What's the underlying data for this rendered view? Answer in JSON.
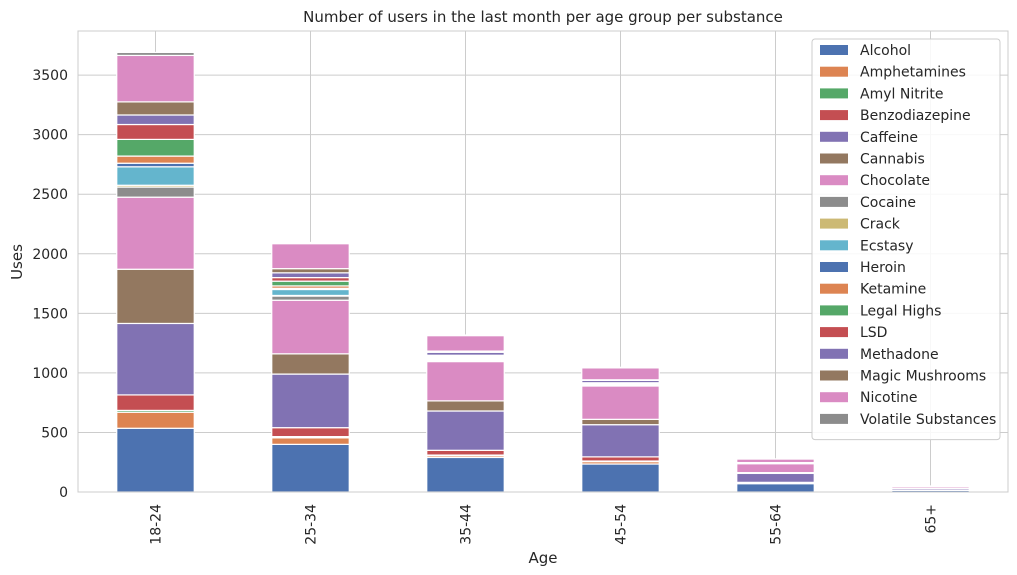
{
  "chart_data": {
    "type": "bar",
    "stacked": true,
    "title": "Number of users in the last month per age group per substance",
    "xlabel": "Age",
    "ylabel": "Uses",
    "ylim": [
      0,
      3870
    ],
    "yticks": [
      0,
      500,
      1000,
      1500,
      2000,
      2500,
      3000,
      3500
    ],
    "grid": true,
    "legend_position": "top-right",
    "categories": [
      "18-24",
      "25-34",
      "35-44",
      "45-54",
      "55-64",
      "65+"
    ],
    "series": [
      {
        "name": "Alcohol",
        "color": "#4c72b0",
        "values": [
          535,
          400,
          290,
          235,
          70,
          14
        ]
      },
      {
        "name": "Amphetamines",
        "color": "#dd8452",
        "values": [
          135,
          55,
          15,
          20,
          3,
          1
        ]
      },
      {
        "name": "Amyl Nitrite",
        "color": "#55a868",
        "values": [
          15,
          10,
          5,
          5,
          1,
          0
        ]
      },
      {
        "name": "Benzodiazepine",
        "color": "#c44e52",
        "values": [
          130,
          75,
          40,
          35,
          7,
          2
        ]
      },
      {
        "name": "Caffeine",
        "color": "#8172b3",
        "values": [
          600,
          450,
          330,
          270,
          75,
          14
        ]
      },
      {
        "name": "Cannabis",
        "color": "#937860",
        "values": [
          455,
          170,
          85,
          45,
          7,
          1
        ]
      },
      {
        "name": "Chocolate",
        "color": "#da8bc3",
        "values": [
          605,
          450,
          330,
          280,
          75,
          14
        ]
      },
      {
        "name": "Cocaine",
        "color": "#8c8c8c",
        "values": [
          85,
          35,
          10,
          5,
          1,
          0
        ]
      },
      {
        "name": "Crack",
        "color": "#ccb974",
        "values": [
          15,
          5,
          3,
          2,
          0,
          0
        ]
      },
      {
        "name": "Ecstasy",
        "color": "#64b5cd",
        "values": [
          155,
          50,
          10,
          5,
          1,
          0
        ]
      },
      {
        "name": "Heroin",
        "color": "#4c72b0",
        "values": [
          30,
          10,
          5,
          3,
          1,
          0
        ]
      },
      {
        "name": "Ketamine",
        "color": "#dd8452",
        "values": [
          60,
          20,
          5,
          2,
          0,
          0
        ]
      },
      {
        "name": "Legal Highs",
        "color": "#55a868",
        "values": [
          140,
          40,
          10,
          5,
          1,
          0
        ]
      },
      {
        "name": "LSD",
        "color": "#c44e52",
        "values": [
          125,
          30,
          10,
          5,
          1,
          0
        ]
      },
      {
        "name": "Methadone",
        "color": "#8172b3",
        "values": [
          80,
          40,
          25,
          20,
          3,
          1
        ]
      },
      {
        "name": "Magic Mushrooms",
        "color": "#937860",
        "values": [
          110,
          35,
          10,
          5,
          1,
          0
        ]
      },
      {
        "name": "Nicotine",
        "color": "#da8bc3",
        "values": [
          390,
          210,
          130,
          100,
          30,
          4
        ]
      },
      {
        "name": "Volatile Substances",
        "color": "#8c8c8c",
        "values": [
          25,
          10,
          5,
          5,
          1,
          0
        ]
      }
    ]
  }
}
